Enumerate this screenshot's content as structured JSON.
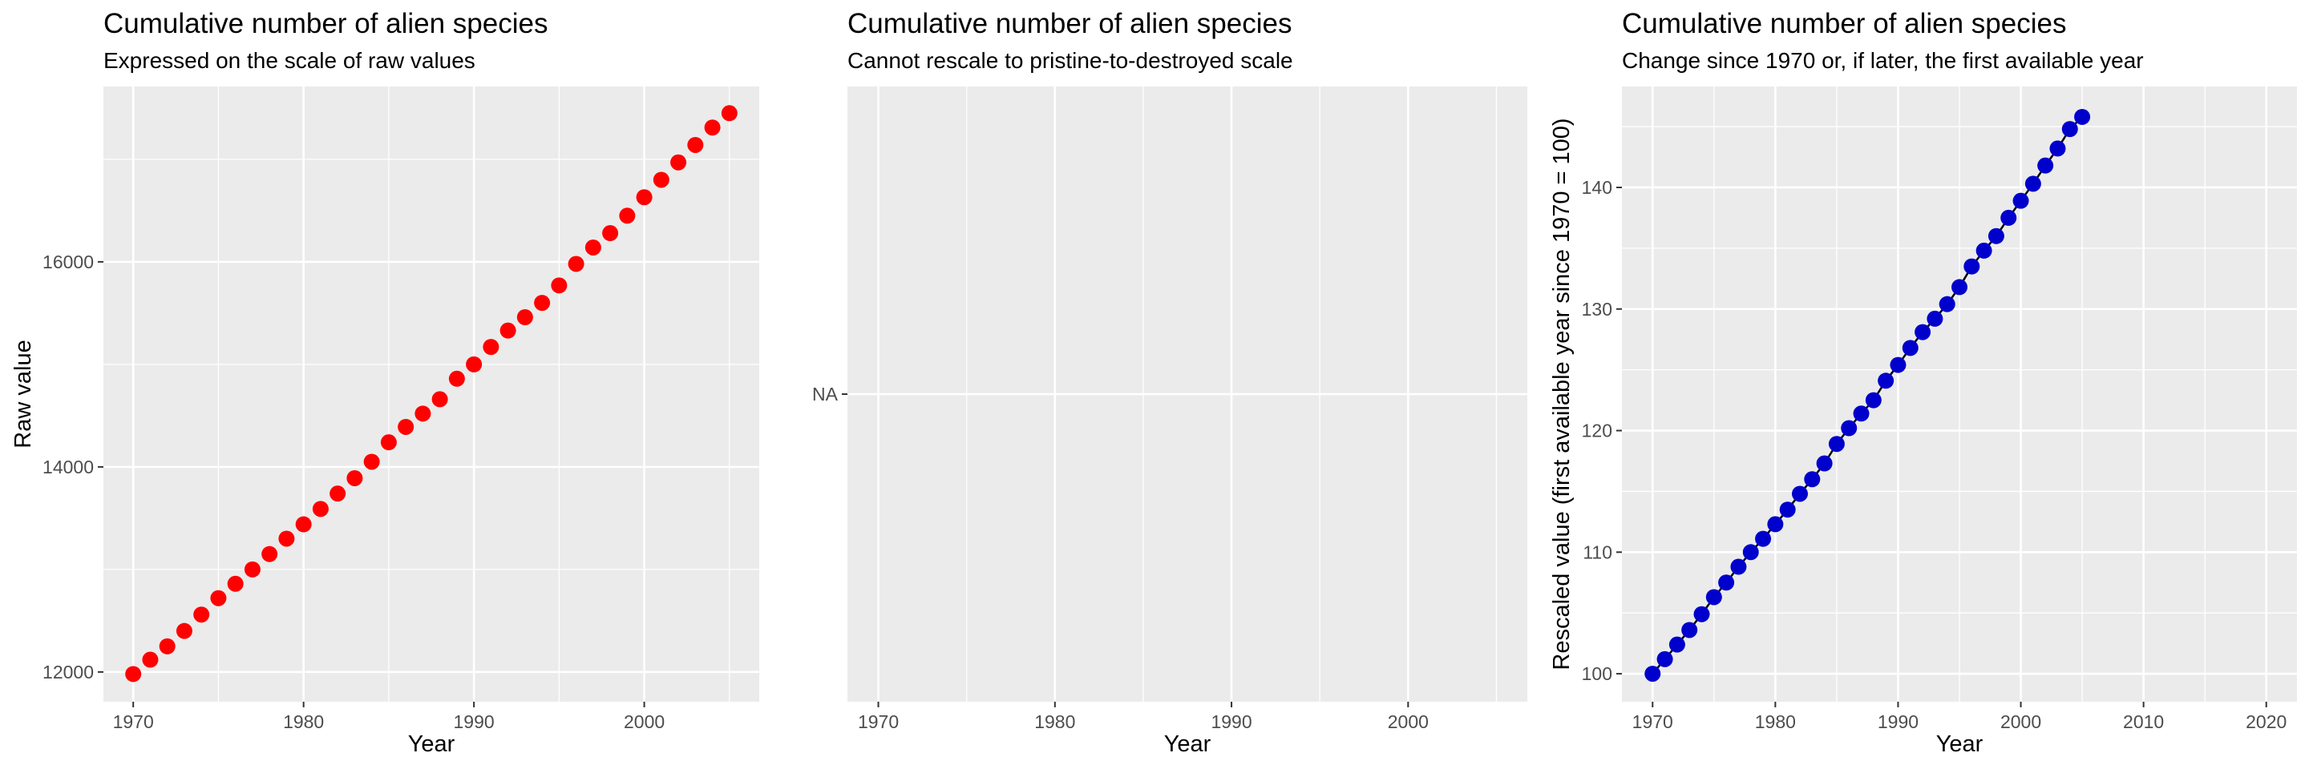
{
  "chart_data": [
    {
      "type": "scatter",
      "title": "Cumulative number of alien species",
      "subtitle": "Expressed on the scale of raw values",
      "xlabel": "Year",
      "ylabel": "Raw value",
      "xlim": [
        1968.25,
        2006.75
      ],
      "ylim": [
        11710,
        17710
      ],
      "x_ticks": [
        1970,
        1980,
        1990,
        2000
      ],
      "x_tick_labels": [
        "1970",
        "1980",
        "1990",
        "2000"
      ],
      "y_ticks": [
        12000,
        14000,
        16000
      ],
      "y_tick_labels": [
        "12000",
        "14000",
        "16000"
      ],
      "grid": true,
      "legend": "none",
      "point_color": "#ff0000",
      "line": false,
      "series": [
        {
          "x": [
            1970,
            1971,
            1972,
            1973,
            1974,
            1975,
            1976,
            1977,
            1978,
            1979,
            1980,
            1981,
            1982,
            1983,
            1984,
            1985,
            1986,
            1987,
            1988,
            1989,
            1990,
            1991,
            1992,
            1993,
            1994,
            1995,
            1996,
            1997,
            1998,
            1999,
            2000,
            2001,
            2002,
            2003,
            2004,
            2005
          ],
          "values": [
            11980,
            12120,
            12250,
            12400,
            12560,
            12720,
            12860,
            13000,
            13150,
            13300,
            13440,
            13590,
            13740,
            13890,
            14050,
            14240,
            14390,
            14520,
            14660,
            14860,
            15000,
            15170,
            15330,
            15460,
            15600,
            15770,
            15980,
            16140,
            16280,
            16450,
            16630,
            16800,
            16970,
            17140,
            17310,
            17450
          ]
        }
      ]
    },
    {
      "type": "scatter",
      "title": "Cumulative number of alien species",
      "subtitle": "Cannot rescale to pristine-to-destroyed scale",
      "xlabel": "Year",
      "ylabel": "",
      "xlim": [
        1968.25,
        2006.75
      ],
      "x_ticks": [
        1970,
        1980,
        1990,
        2000
      ],
      "x_tick_labels": [
        "1970",
        "1980",
        "1990",
        "2000"
      ],
      "y_ticks": [
        "NA"
      ],
      "y_tick_labels": [
        "NA"
      ],
      "grid": true,
      "legend": "none",
      "series": []
    },
    {
      "type": "line",
      "title": "Cumulative number of alien species",
      "subtitle": "Change since 1970 or, if later, the first available year",
      "xlabel": "Year",
      "ylabel": "Rescaled value (first available year since 1970 = 100)",
      "xlim": [
        1967.5,
        2022.5
      ],
      "ylim": [
        97.7,
        148.3
      ],
      "x_ticks": [
        1970,
        1980,
        1990,
        2000,
        2010,
        2020
      ],
      "x_tick_labels": [
        "1970",
        "1980",
        "1990",
        "2000",
        "2010",
        "2020"
      ],
      "y_ticks": [
        100,
        110,
        120,
        130,
        140
      ],
      "y_tick_labels": [
        "100",
        "110",
        "120",
        "130",
        "140"
      ],
      "grid": true,
      "legend": "none",
      "point_color": "#0000cd",
      "line_color": "#000000",
      "line": true,
      "series": [
        {
          "x": [
            1970,
            1971,
            1972,
            1973,
            1974,
            1975,
            1976,
            1977,
            1978,
            1979,
            1980,
            1981,
            1982,
            1983,
            1984,
            1985,
            1986,
            1987,
            1988,
            1989,
            1990,
            1991,
            1992,
            1993,
            1994,
            1995,
            1996,
            1997,
            1998,
            1999,
            2000,
            2001,
            2002,
            2003,
            2004,
            2005
          ],
          "values": [
            100.0,
            101.2,
            102.4,
            103.6,
            104.9,
            106.3,
            107.5,
            108.8,
            110.0,
            111.1,
            112.3,
            113.5,
            114.8,
            116.0,
            117.3,
            118.9,
            120.2,
            121.4,
            122.5,
            124.1,
            125.4,
            126.8,
            128.1,
            129.2,
            130.4,
            131.8,
            133.5,
            134.8,
            136.0,
            137.5,
            138.9,
            140.3,
            141.8,
            143.2,
            144.8,
            145.8
          ]
        }
      ]
    }
  ]
}
